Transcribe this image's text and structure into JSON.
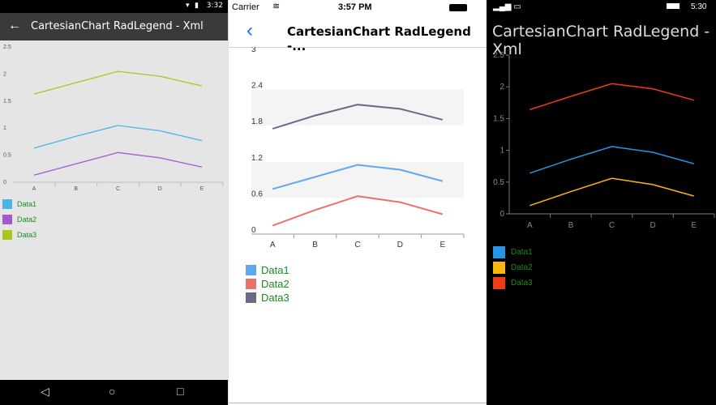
{
  "categories": [
    "A",
    "B",
    "C",
    "D",
    "E"
  ],
  "android": {
    "status_time": "3:32",
    "title": "CartesianChart RadLegend - Xml",
    "back_icon": "arrow-left-icon",
    "y_ticks": [
      "0",
      "0.5",
      "1",
      "1.5",
      "2",
      "2.5"
    ],
    "legend": [
      {
        "label": "Data1",
        "color": "#4ab3e8"
      },
      {
        "label": "Data2",
        "color": "#a35ad1"
      },
      {
        "label": "Data3",
        "color": "#a6c81c"
      }
    ],
    "nav": [
      "◁",
      "○",
      "□"
    ]
  },
  "ios": {
    "carrier": "Carrier",
    "status_time": "3:57 PM",
    "title": "CartesianChart RadLegend -...",
    "y_ticks": [
      "0",
      "0.6",
      "1.2",
      "1.8",
      "2.4",
      "3"
    ],
    "legend": [
      {
        "label": "Data1",
        "color": "#5fa8f0"
      },
      {
        "label": "Data2",
        "color": "#e9726e"
      },
      {
        "label": "Data3",
        "color": "#6c6886"
      }
    ]
  },
  "wp": {
    "status_time": "5:30",
    "title": "CartesianChart RadLegend - Xml",
    "y_ticks": [
      "0",
      "0.5",
      "1",
      "1.5",
      "2",
      "2.5"
    ],
    "legend": [
      {
        "label": "Data1",
        "color": "#2a94e4"
      },
      {
        "label": "Data2",
        "color": "#f9b70f"
      },
      {
        "label": "Data3",
        "color": "#ef3b16"
      }
    ]
  },
  "chart_data": [
    {
      "type": "line",
      "categories": [
        "A",
        "B",
        "C",
        "D",
        "E"
      ],
      "ylim": [
        0,
        2.5
      ],
      "series": [
        {
          "name": "Data1",
          "values": [
            0.63,
            0.85,
            1.05,
            0.95,
            0.77
          ]
        },
        {
          "name": "Data2",
          "values": [
            0.13,
            0.34,
            0.55,
            0.45,
            0.28
          ]
        },
        {
          "name": "Data3",
          "values": [
            1.63,
            1.84,
            2.05,
            1.96,
            1.78
          ]
        }
      ]
    },
    {
      "type": "line",
      "categories": [
        "A",
        "B",
        "C",
        "D",
        "E"
      ],
      "ylim": [
        0,
        3
      ],
      "series": [
        {
          "name": "Data1",
          "values": [
            0.75,
            0.95,
            1.15,
            1.07,
            0.88
          ]
        },
        {
          "name": "Data2",
          "values": [
            0.14,
            0.4,
            0.63,
            0.53,
            0.33
          ]
        },
        {
          "name": "Data3",
          "values": [
            1.75,
            1.97,
            2.15,
            2.08,
            1.9
          ]
        }
      ]
    },
    {
      "type": "line",
      "categories": [
        "A",
        "B",
        "C",
        "D",
        "E"
      ],
      "ylim": [
        0,
        2.5
      ],
      "series": [
        {
          "name": "Data1",
          "values": [
            0.64,
            0.86,
            1.06,
            0.97,
            0.79
          ]
        },
        {
          "name": "Data2",
          "values": [
            0.13,
            0.35,
            0.56,
            0.46,
            0.28
          ]
        },
        {
          "name": "Data3",
          "values": [
            1.64,
            1.85,
            2.05,
            1.97,
            1.79
          ]
        }
      ]
    }
  ]
}
